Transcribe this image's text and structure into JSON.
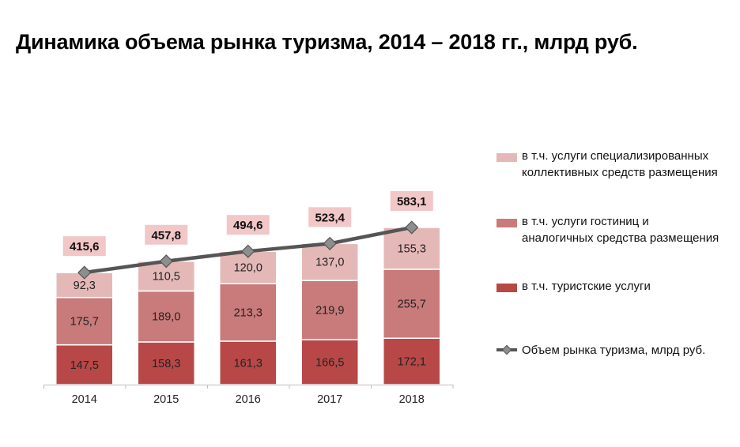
{
  "title": "Динамика объема рынка туризма, 2014 – 2018 гг., млрд руб.",
  "colors": {
    "tourist_services": "#b84848",
    "hotels": "#c97a7a",
    "specialized": "#e5b8b8",
    "line": "#555555",
    "marker": "#8e8e8e",
    "total_box": "#f1c7c7"
  },
  "legend": {
    "specialized": "в т.ч. услуги специализированных коллективных средств размещения",
    "hotels": "в т.ч. услуги гостиниц и аналогичных средства размещения",
    "tourist_services": "в т.ч. туристские услуги",
    "total": "Объем рынка туризма, млрд руб."
  },
  "chart_data": {
    "type": "bar",
    "stacked": true,
    "categories": [
      "2014",
      "2015",
      "2016",
      "2017",
      "2018"
    ],
    "series": [
      {
        "name": "в т.ч. туристские услуги",
        "key": "tourist_services",
        "values": [
          147.5,
          158.3,
          161.3,
          166.5,
          172.1
        ],
        "labels": [
          "147,5",
          "158,3",
          "161,3",
          "166,5",
          "172,1"
        ]
      },
      {
        "name": "в т.ч. услуги гостиниц и аналогичных средства размещения",
        "key": "hotels",
        "values": [
          175.7,
          189.0,
          213.3,
          219.9,
          255.7
        ],
        "labels": [
          "175,7",
          "189,0",
          "213,3",
          "219,9",
          "255,7"
        ]
      },
      {
        "name": "в т.ч. услуги специализированных коллективных средств размещения",
        "key": "specialized",
        "values": [
          92.3,
          110.5,
          120.0,
          137.0,
          155.3
        ],
        "labels": [
          "92,3",
          "110,5",
          "120,0",
          "137,0",
          "155,3"
        ]
      }
    ],
    "line_series": {
      "name": "Объем рынка туризма, млрд руб.",
      "values": [
        415.6,
        457.8,
        494.6,
        523.4,
        583.1
      ],
      "labels": [
        "415,6",
        "457,8",
        "494,6",
        "523,4",
        "583,1"
      ]
    },
    "ylim": [
      0,
      600
    ],
    "grid": false,
    "legend_position": "right"
  }
}
